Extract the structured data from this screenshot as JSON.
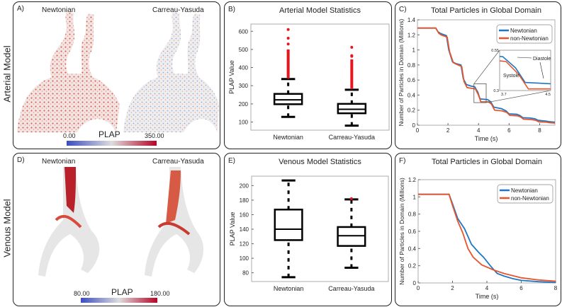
{
  "row_labels": {
    "top": "Arterial Model",
    "bottom": "Venous Model"
  },
  "panel_A": {
    "label": "A)",
    "left_title": "Newtonian",
    "right_title": "Carreau-Yasuda",
    "colorbar": {
      "title": "PLAP",
      "min": "0.00",
      "max": "350.00",
      "low_color": "#3b4cc0",
      "high_color": "#b40426"
    }
  },
  "panel_D": {
    "label": "D)",
    "left_title": "Newtonian",
    "right_title": "Carreau-Yasuda",
    "colorbar": {
      "title": "PLAP",
      "min": "80.00",
      "max": "180.00",
      "low_color": "#3b4cc0",
      "high_color": "#b40426"
    }
  },
  "colors": {
    "newtonian": "#1f77c4",
    "non_newtonian": "#e8542b",
    "outlier": "#e8141e"
  },
  "chart_data": [
    {
      "id": "B",
      "label": "B)",
      "type": "box",
      "title": "Arterial Model Statistics",
      "xlabel": "",
      "ylabel": "PLAP Value",
      "ylim": [
        55,
        640
      ],
      "yticks": [
        100,
        200,
        300,
        400,
        500,
        600
      ],
      "categories": [
        "Newtonian",
        "Carreau-Yasuda"
      ],
      "boxes": [
        {
          "whisker_low": 128,
          "q1": 198,
          "median": 222,
          "q3": 255,
          "whisker_high": 337,
          "outlier_range": [
            340,
            500
          ],
          "outliers": [
            530,
            562,
            610
          ]
        },
        {
          "whisker_low": 80,
          "q1": 148,
          "median": 170,
          "q3": 200,
          "whisker_high": 278,
          "outlier_range": [
            281,
            445
          ],
          "outliers": [
            462,
            466,
            512
          ]
        }
      ]
    },
    {
      "id": "C",
      "label": "C)",
      "type": "line",
      "title": "Total Particles in Global Domain",
      "xlabel": "Time (s)",
      "ylabel": "Number of Particles in Domain (Millions)",
      "xlim": [
        0,
        9
      ],
      "ylim": [
        0,
        1.4
      ],
      "xticks": [
        0,
        2,
        4,
        6,
        8
      ],
      "yticks": [
        0,
        0.2,
        0.4,
        0.6,
        0.8,
        1,
        1.2,
        1.4
      ],
      "legend": "top-right",
      "series": [
        {
          "name": "Newtonian",
          "x": [
            0,
            1.2,
            1.35,
            1.5,
            1.9,
            2.05,
            2.3,
            2.5,
            2.85,
            3.0,
            3.2,
            3.5,
            3.75,
            3.95,
            4.1,
            4.6,
            4.8,
            5.0,
            5.5,
            5.8,
            6.0,
            6.5,
            6.7,
            6.9,
            7.4,
            7.7,
            7.9,
            8.4,
            8.6,
            9
          ],
          "y": [
            1.29,
            1.29,
            1.24,
            1.22,
            1.19,
            1.0,
            0.84,
            0.82,
            0.8,
            0.62,
            0.54,
            0.52,
            0.51,
            0.44,
            0.35,
            0.34,
            0.31,
            0.24,
            0.22,
            0.19,
            0.15,
            0.145,
            0.13,
            0.1,
            0.095,
            0.085,
            0.065,
            0.055,
            0.048,
            0.04
          ]
        },
        {
          "name": "non-Newtonian",
          "x": [
            0,
            1.2,
            1.4,
            1.55,
            1.95,
            2.1,
            2.35,
            2.55,
            2.9,
            3.05,
            3.25,
            3.55,
            3.8,
            4.0,
            4.15,
            4.65,
            4.85,
            5.05,
            5.55,
            5.85,
            6.05,
            6.55,
            6.75,
            6.95,
            7.45,
            7.75,
            7.95,
            8.45,
            8.65,
            9
          ],
          "y": [
            1.29,
            1.29,
            1.22,
            1.2,
            1.17,
            0.98,
            0.83,
            0.81,
            0.78,
            0.58,
            0.5,
            0.49,
            0.48,
            0.4,
            0.31,
            0.31,
            0.28,
            0.2,
            0.19,
            0.17,
            0.13,
            0.125,
            0.11,
            0.08,
            0.075,
            0.065,
            0.045,
            0.04,
            0.033,
            0.028
          ]
        }
      ],
      "inset": {
        "xlim": [
          3.7,
          4.5
        ],
        "ylim": [
          0.3,
          0.55
        ],
        "xtick_labels": [
          "3.7",
          "4.5"
        ],
        "ytick_labels": [
          "0.3",
          "0.55"
        ],
        "annotations": [
          "Diastole",
          "Systole"
        ]
      }
    },
    {
      "id": "E",
      "label": "E)",
      "type": "box",
      "title": "Venous Model Statistics",
      "xlabel": "",
      "ylabel": "PLAP Value",
      "ylim": [
        68,
        213
      ],
      "yticks": [
        80,
        100,
        120,
        140,
        160,
        180,
        200
      ],
      "categories": [
        "Newtonian",
        "Carreau-Yasuda"
      ],
      "boxes": [
        {
          "whisker_low": 74,
          "q1": 125,
          "median": 140,
          "q3": 167,
          "whisker_high": 207,
          "outliers": []
        },
        {
          "whisker_low": 87,
          "q1": 117,
          "median": 131,
          "q3": 143,
          "whisker_high": 181,
          "outliers": [
            182
          ]
        }
      ]
    },
    {
      "id": "F",
      "label": "F)",
      "type": "line",
      "title": "Total Particles in Global Domain",
      "xlabel": "Time (s)",
      "ylabel": "Number of Particles in Domain (Millions)",
      "xlim": [
        0,
        8
      ],
      "ylim": [
        0,
        1.2
      ],
      "xticks": [
        0,
        2,
        4,
        6,
        8
      ],
      "yticks": [
        0,
        0.2,
        0.4,
        0.6,
        0.8,
        1,
        1.2
      ],
      "legend": "top-right",
      "series": [
        {
          "name": "Newtonian",
          "x": [
            0,
            1.8,
            2.0,
            2.3,
            2.7,
            3.1,
            3.5,
            3.8,
            4.2,
            4.6,
            5.0,
            5.5,
            6.0,
            7.0,
            8.0
          ],
          "y": [
            1.03,
            1.03,
            0.92,
            0.75,
            0.63,
            0.45,
            0.36,
            0.3,
            0.2,
            0.11,
            0.08,
            0.05,
            0.03,
            0.015,
            0.005
          ]
        },
        {
          "name": "non-Newtonian",
          "x": [
            0,
            1.8,
            2.0,
            2.3,
            2.6,
            2.9,
            3.2,
            3.7,
            4.4,
            5.0,
            6.0,
            7.0,
            8.0
          ],
          "y": [
            1.03,
            1.03,
            0.9,
            0.72,
            0.58,
            0.4,
            0.3,
            0.21,
            0.15,
            0.11,
            0.06,
            0.035,
            0.02
          ]
        }
      ]
    }
  ]
}
